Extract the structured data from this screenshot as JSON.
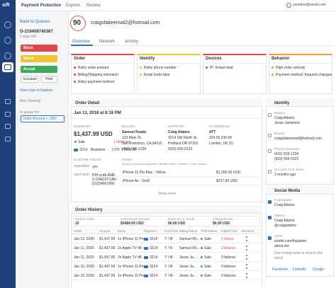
{
  "topbar": {
    "logo": "sift",
    "tabs": [
      "Payment Protection",
      "Explore",
      "Review"
    ],
    "user": "janedoe@email.com"
  },
  "sidebar": {
    "back": "Back to Queues",
    "order_id": "O-219408740387",
    "time_left": "2 days left",
    "buttons": [
      "Block",
      "Watch",
      "Accept",
      "Escalate",
      "Hold"
    ],
    "explore_link": "View User in Explore",
    "also_viewing": "Also Viewing:",
    "in_queue": "In queue for:",
    "queue": "Order Amount > 1000 ..."
  },
  "header": {
    "score": 90,
    "email": "craigsfakeemail2@hotmail.com",
    "tabs": [
      "Overview",
      "Network",
      "Activity"
    ]
  },
  "signals": [
    {
      "title": "Order",
      "items": [
        "Risky order amount",
        "Billing/Shipping mismatch",
        "Risky payment method"
      ]
    },
    {
      "title": "Identity",
      "items": [
        "Risky phone number",
        "Email looks fake"
      ]
    },
    {
      "title": "Devices",
      "items": [
        "IP: Known bad"
      ]
    },
    {
      "title": "Behavior",
      "items": [
        "High order velocity",
        "Payment method: frequent changes"
      ]
    }
  ],
  "order_detail": {
    "title": "Order Detail",
    "date": "Jan 13, 2018 at 8:18 PM",
    "summary": {
      "label": "SUMMARY",
      "amount": "$1,437.99 USD",
      "status": "Sale",
      "failed": "1 failed txn",
      "card": "3214",
      "gateway": "Braintree",
      "cvv": "CVV: Y AVS: M"
    },
    "billing": {
      "label": "BILLING",
      "lines": [
        "Samuel Roads",
        "123 Main St.",
        "San Francisco, CA 94115",
        "(415) 555-1234"
      ]
    },
    "shipping": {
      "label": "SHIPPING",
      "lines": [
        "Craig Adams",
        "3214 SW North St.",
        "Portland OR 97201",
        "(503) 555-0123"
      ]
    },
    "ip": {
      "label": "IP ADDRESS",
      "lines": [
        "ATT",
        "324.56.236.58",
        "London, UK (5)"
      ]
    },
    "custom": {
      "label": "CUSTOM FIELDS",
      "fields": [
        [
          "expedited",
          "yes"
        ],
        [
          "card hash",
          "PIH.ccdb.AMEX.CREDITCARD1234567890"
        ]
      ]
    },
    "items": {
      "label": "ITEMS",
      "path": "Sporting Goods and Equipment > Between Beds > Furniture > Face Creams ...",
      "list": [
        [
          "iPhone 11 Pro Max - Yellow",
          "$1,200.00 USD"
        ],
        [
          "iPhone Air - Gold",
          "$237.99 USD"
        ]
      ]
    },
    "show_more": "Show more"
  },
  "order_history": {
    "title": "Order History",
    "summary": [
      [
        "Orders Total",
        "15"
      ],
      [
        "Authorized Amount",
        "$3484.99 USD"
      ],
      [
        "Refunds or Voids",
        "$0.00 USD"
      ],
      [
        "Chargebacks",
        "$0.00 USD"
      ]
    ],
    "columns": [
      "Order",
      "Amount",
      "Items",
      "Payment",
      "CVV/AVS",
      "Billing Name",
      "TXN Status",
      "Failed TXN",
      "Decision"
    ],
    "rows": [
      [
        "Jan 12, 2020",
        "$1,437.99",
        "1x iPhone 11 Pro...",
        "3214",
        "Y / M",
        "Samuel Ro...",
        "Sale",
        "1 failure"
      ],
      [
        "Jan 11, 2020",
        "$1,437.99",
        "2x Apple TV 4K",
        "3214",
        "Y / N",
        "Samuel Ro...",
        "Sale",
        "2 failures"
      ],
      [
        "Jan 11, 2020",
        "$1,437.99",
        "2x Apple TV 4K",
        "3214",
        "Y / M",
        "Jesse Ja...",
        "Sale",
        "0 failures"
      ],
      [
        "Jan 10, 2020",
        "$1,437.99",
        "1x iPhone 11 Pro...",
        "3214",
        "Y / M",
        "Jesse Ja...",
        "Sale",
        "0 failures"
      ],
      [
        "Jan 10, 2020",
        "$1,437.99",
        "1x iPhone 11 Pro...",
        "3214",
        "Y / M",
        "Jesse Ja...",
        "Sale",
        "0 failures"
      ]
    ]
  },
  "identity": {
    "title": "Identity",
    "groups": [
      {
        "label": "Names",
        "values": [
          "Craig Adams",
          "Jesse Jamieson"
        ]
      },
      {
        "label": "Emails",
        "values": [
          "craigsfakeemail@hotmail.com"
        ]
      },
      {
        "label": "Phone Numbers",
        "values": [
          "(415) 555-1234",
          "(503) 555-0123"
        ]
      },
      {
        "label": "Account First Seen",
        "values": [
          "3 months ago"
        ]
      }
    ]
  },
  "social": {
    "title": "Social Media",
    "groups": [
      {
        "label": "Foursquare",
        "values": [
          "Craig Adams"
        ]
      },
      {
        "label": "Twitter",
        "values": [
          "Craig Adams",
          "@craigadams"
        ]
      },
      {
        "label": "Other",
        "values": [
          "tumblr.com/fraudster",
          "about.me"
        ]
      }
    ],
    "lookup": "Use lookup tools to search this email",
    "links": [
      "Facebook",
      "LinkedIn",
      "Google"
    ]
  }
}
